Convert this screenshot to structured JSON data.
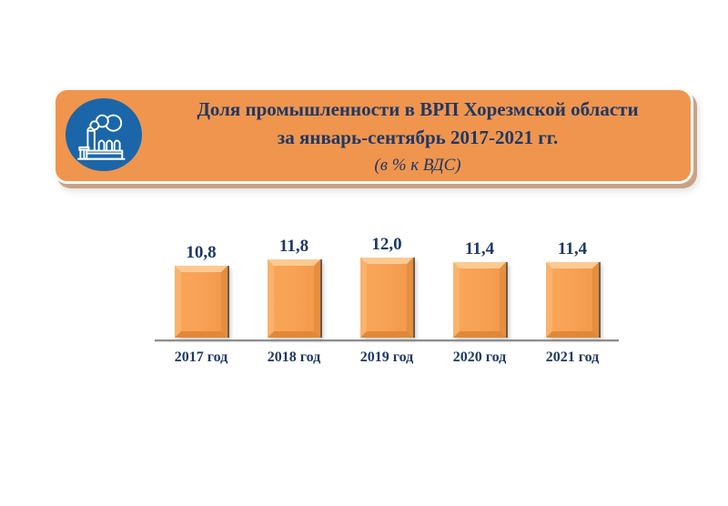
{
  "header": {
    "line1": "Доля промышленности в ВРП Хорезмской области",
    "line2": "за январь-сентябрь 2017-2021 гг.",
    "subtitle": "(в % к ВДС)",
    "icon": "factory-icon",
    "colors": {
      "banner_background": "#F0954E",
      "icon_circle": "#1A66A8",
      "title_text": "#1F3864",
      "banner_shadow": "#C9A285"
    }
  },
  "chart_data": {
    "type": "bar",
    "title": "Доля промышленности в ВРП Хорезмской области за январь-сентябрь 2017-2021 гг.",
    "subtitle": "(в % к ВДС)",
    "categories": [
      "2017 год",
      "2018 год",
      "2019 год",
      "2020 год",
      "2021 год"
    ],
    "values": [
      10.8,
      11.8,
      12.0,
      11.4,
      11.4
    ],
    "value_labels": [
      "10,8",
      "11,8",
      "12,0",
      "11,4",
      "11,4"
    ],
    "ylim": [
      0,
      12.5
    ],
    "grid": false,
    "legend": false,
    "bar_color": "#F7A154",
    "bar_bevel_light": "#FCCA92",
    "bar_bevel_dark": "#E68E3F",
    "label_color": "#1F3864",
    "axis_color": "#8C8C8C"
  }
}
